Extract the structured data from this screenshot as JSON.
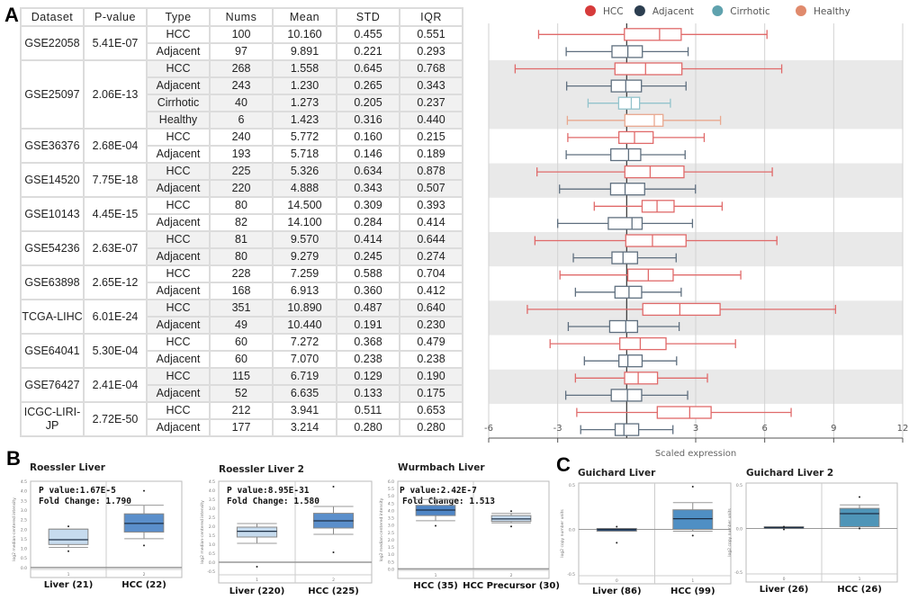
{
  "panel_letters": {
    "a": "A",
    "b": "B",
    "c": "C"
  },
  "table": {
    "headers": [
      "Dataset",
      "P-value",
      "Type",
      "Nums",
      "Mean",
      "STD",
      "IQR"
    ],
    "datasets": [
      {
        "name": "GSE22058",
        "pvalue": "5.41E-07",
        "rows": [
          [
            "HCC",
            "100",
            "10.160",
            "0.455",
            "0.551"
          ],
          [
            "Adjacent",
            "97",
            "9.891",
            "0.221",
            "0.293"
          ]
        ]
      },
      {
        "name": "GSE25097",
        "pvalue": "2.06E-13",
        "rows": [
          [
            "HCC",
            "268",
            "1.558",
            "0.645",
            "0.768"
          ],
          [
            "Adjacent",
            "243",
            "1.230",
            "0.265",
            "0.343"
          ],
          [
            "Cirrhotic",
            "40",
            "1.273",
            "0.205",
            "0.237"
          ],
          [
            "Healthy",
            "6",
            "1.423",
            "0.316",
            "0.440"
          ]
        ]
      },
      {
        "name": "GSE36376",
        "pvalue": "2.68E-04",
        "rows": [
          [
            "HCC",
            "240",
            "5.772",
            "0.160",
            "0.215"
          ],
          [
            "Adjacent",
            "193",
            "5.718",
            "0.146",
            "0.189"
          ]
        ]
      },
      {
        "name": "GSE14520",
        "pvalue": "7.75E-18",
        "rows": [
          [
            "HCC",
            "225",
            "5.326",
            "0.634",
            "0.878"
          ],
          [
            "Adjacent",
            "220",
            "4.888",
            "0.343",
            "0.507"
          ]
        ]
      },
      {
        "name": "GSE10143",
        "pvalue": "4.45E-15",
        "rows": [
          [
            "HCC",
            "80",
            "14.500",
            "0.309",
            "0.393"
          ],
          [
            "Adjacent",
            "82",
            "14.100",
            "0.284",
            "0.414"
          ]
        ]
      },
      {
        "name": "GSE54236",
        "pvalue": "2.63E-07",
        "rows": [
          [
            "HCC",
            "81",
            "9.570",
            "0.414",
            "0.644"
          ],
          [
            "Adjacent",
            "80",
            "9.279",
            "0.245",
            "0.274"
          ]
        ]
      },
      {
        "name": "GSE63898",
        "pvalue": "2.65E-12",
        "rows": [
          [
            "HCC",
            "228",
            "7.259",
            "0.588",
            "0.704"
          ],
          [
            "Adjacent",
            "168",
            "6.913",
            "0.360",
            "0.412"
          ]
        ]
      },
      {
        "name": "TCGA-LIHC",
        "pvalue": "6.01E-24",
        "rows": [
          [
            "HCC",
            "351",
            "10.890",
            "0.487",
            "0.640"
          ],
          [
            "Adjacent",
            "49",
            "10.440",
            "0.191",
            "0.230"
          ]
        ]
      },
      {
        "name": "GSE64041",
        "pvalue": "5.30E-04",
        "rows": [
          [
            "HCC",
            "60",
            "7.272",
            "0.368",
            "0.479"
          ],
          [
            "Adjacent",
            "60",
            "7.070",
            "0.238",
            "0.238"
          ]
        ]
      },
      {
        "name": "GSE76427",
        "pvalue": "2.41E-04",
        "rows": [
          [
            "HCC",
            "115",
            "6.719",
            "0.129",
            "0.190"
          ],
          [
            "Adjacent",
            "52",
            "6.635",
            "0.133",
            "0.175"
          ]
        ]
      },
      {
        "name": "ICGC-LIRI-JP",
        "pvalue": "2.72E-50",
        "rows": [
          [
            "HCC",
            "212",
            "3.941",
            "0.511",
            "0.653"
          ],
          [
            "Adjacent",
            "177",
            "3.214",
            "0.280",
            "0.280"
          ]
        ]
      }
    ]
  },
  "chart_data": [
    {
      "type": "boxplot-horizontal",
      "xlabel": "Scaled expression",
      "xlim": [
        -6,
        12
      ],
      "xticks": [
        -6,
        -3,
        3,
        6,
        9,
        12
      ],
      "grid": true,
      "legend_position": "top",
      "legend": [
        {
          "name": "HCC",
          "color": "#d63b3b"
        },
        {
          "name": "Adjacent",
          "color": "#2c3e50"
        },
        {
          "name": "Cirrhotic",
          "color": "#5fa2ae"
        },
        {
          "name": "Healthy",
          "color": "#e08a6c"
        }
      ],
      "stroke_colors": {
        "HCC": "#e06a6a",
        "Adjacent": "#5f6f7f",
        "Cirrhotic": "#93c3cc",
        "Healthy": "#e9a88f"
      },
      "boxes": [
        {
          "group": "HCC",
          "stats": [
            -3.83,
            -0.1,
            1.43,
            2.37,
            6.1
          ]
        },
        {
          "group": "Adjacent",
          "stats": [
            -2.63,
            -0.64,
            0.05,
            0.68,
            2.67
          ]
        },
        {
          "group": "HCC",
          "stats": [
            -4.85,
            -0.51,
            0.82,
            2.4,
            6.74
          ]
        },
        {
          "group": "Adjacent",
          "stats": [
            -2.61,
            -0.67,
            -0.04,
            0.64,
            2.58
          ]
        },
        {
          "group": "Cirrhotic",
          "stats": [
            -1.68,
            -0.35,
            0.2,
            0.56,
            1.9
          ]
        },
        {
          "group": "Healthy",
          "stats": [
            -2.58,
            -0.08,
            1.2,
            1.58,
            4.08
          ]
        },
        {
          "group": "HCC",
          "stats": [
            -2.56,
            -0.34,
            0.34,
            1.15,
            3.37
          ]
        },
        {
          "group": "Adjacent",
          "stats": [
            -2.63,
            -0.69,
            0.08,
            0.61,
            2.54
          ]
        },
        {
          "group": "HCC",
          "stats": [
            -3.9,
            -0.08,
            1.02,
            2.49,
            6.33
          ]
        },
        {
          "group": "Adjacent",
          "stats": [
            -2.92,
            -0.7,
            -0.07,
            0.78,
            2.99
          ]
        },
        {
          "group": "HCC",
          "stats": [
            -1.41,
            0.67,
            1.32,
            2.06,
            4.15
          ]
        },
        {
          "group": "Adjacent",
          "stats": [
            -3.0,
            -0.8,
            0.23,
            0.67,
            2.86
          ]
        },
        {
          "group": "HCC",
          "stats": [
            -3.99,
            -0.04,
            1.12,
            2.58,
            6.53
          ]
        },
        {
          "group": "Adjacent",
          "stats": [
            -2.32,
            -0.64,
            -0.16,
            0.47,
            2.15
          ]
        },
        {
          "group": "HCC",
          "stats": [
            -2.9,
            0.05,
            0.94,
            2.02,
            4.96
          ]
        },
        {
          "group": "Adjacent",
          "stats": [
            -2.23,
            -0.51,
            0.1,
            0.65,
            2.37
          ]
        },
        {
          "group": "HCC",
          "stats": [
            -4.32,
            0.7,
            2.31,
            4.06,
            9.08
          ]
        },
        {
          "group": "Adjacent",
          "stats": [
            -2.54,
            -0.74,
            -0.04,
            0.47,
            2.28
          ]
        },
        {
          "group": "HCC",
          "stats": [
            -3.33,
            -0.3,
            0.59,
            1.71,
            4.73
          ]
        },
        {
          "group": "Adjacent",
          "stats": [
            -1.84,
            -0.34,
            0.05,
            0.67,
            2.17
          ]
        },
        {
          "group": "HCC",
          "stats": [
            -2.23,
            -0.09,
            0.5,
            1.34,
            3.51
          ]
        },
        {
          "group": "Adjacent",
          "stats": [
            -2.65,
            -0.67,
            0.03,
            0.65,
            2.65
          ]
        },
        {
          "group": "HCC",
          "stats": [
            -2.17,
            1.33,
            2.74,
            3.67,
            7.15
          ]
        },
        {
          "group": "Adjacent",
          "stats": [
            -2.0,
            -0.5,
            -0.12,
            0.52,
            2.01
          ]
        }
      ]
    },
    {
      "type": "boxplot",
      "panel": "B",
      "title": "Roessler Liver",
      "pvalue": "P value:1.67E-5",
      "fold_change": "Fold Change:  1.790",
      "ylabel": "log2 median-centered intensity",
      "ylim": [
        -0.1,
        4.5
      ],
      "yticks": [
        "0.0",
        "0.5",
        "1.0",
        "1.5",
        "2.0",
        "2.5",
        "3.0",
        "3.5",
        "4.0",
        "4.5"
      ],
      "groups": [
        {
          "label": "Liver (21)",
          "index": "1",
          "color": "#c6dbee",
          "stats": [
            1.05,
            1.2,
            1.45,
            2.0,
            2.0
          ],
          "outliers": [
            0.85,
            2.15
          ]
        },
        {
          "label": "HCC (22)",
          "index": "2",
          "color": "#5b8fcb",
          "stats": [
            1.5,
            1.85,
            2.3,
            2.8,
            3.25
          ],
          "outliers": [
            1.15,
            4.0
          ]
        }
      ]
    },
    {
      "type": "boxplot",
      "panel": "B",
      "title": "Roessler Liver 2",
      "pvalue": "P value:8.95E-31",
      "fold_change": "Fold Change:  1.580",
      "ylabel": "log2 median-centered intensity",
      "ylim": [
        -0.7,
        4.5
      ],
      "yticks": [
        "-0.5",
        "0.0",
        "0.5",
        "1.0",
        "1.5",
        "2.0",
        "2.5",
        "3.0",
        "3.5",
        "4.0",
        "4.5"
      ],
      "groups": [
        {
          "label": "Liver (220)",
          "index": "1",
          "color": "#c6dbee",
          "stats": [
            1.05,
            1.4,
            1.72,
            1.95,
            2.15
          ],
          "outliers": [
            -0.25
          ]
        },
        {
          "label": "HCC (225)",
          "index": "2",
          "color": "#5b8fcb",
          "stats": [
            1.55,
            1.9,
            2.3,
            2.72,
            3.1
          ],
          "outliers": [
            0.55,
            4.2
          ]
        }
      ]
    },
    {
      "type": "boxplot",
      "panel": "B",
      "title": "Wurmbach Liver",
      "pvalue": "P value:2.42E-7",
      "fold_change": "Fold Change:  1.513",
      "ylabel": "log2 median-centered intensity",
      "ylim": [
        -0.1,
        6.0
      ],
      "yticks": [
        "0.0",
        "0.5",
        "1.0",
        "1.5",
        "2.0",
        "2.5",
        "3.0",
        "3.5",
        "4.0",
        "4.5",
        "5.0",
        "5.5",
        "6.0"
      ],
      "groups": [
        {
          "label": "HCC (35)",
          "index": "1",
          "color": "#4f86c6",
          "stats": [
            3.3,
            3.65,
            4.03,
            4.35,
            4.75
          ],
          "outliers": [
            2.95
          ]
        },
        {
          "label": "HCC Precursor (30)",
          "index": "2",
          "color": "#c6dbee",
          "stats": [
            3.15,
            3.25,
            3.42,
            3.65,
            3.8
          ],
          "outliers": [
            2.9,
            3.95
          ]
        }
      ]
    },
    {
      "type": "boxplot",
      "panel": "C",
      "title": "Guichard Liver",
      "ylabel": "log2 copy number units",
      "ylim": [
        -0.52,
        0.52
      ],
      "yticks": [
        "-0.5",
        "0.0",
        "0.5"
      ],
      "groups": [
        {
          "label": "Liver (86)",
          "index": "0",
          "color": "#2f4f7a",
          "stats": [
            -0.02,
            -0.02,
            0.0,
            0.01,
            0.01
          ],
          "outliers": [
            0.03,
            -0.15
          ]
        },
        {
          "label": "HCC (99)",
          "index": "1",
          "color": "#4f8fc4",
          "stats": [
            -0.02,
            0.0,
            0.12,
            0.22,
            0.3
          ],
          "outliers": [
            0.48,
            -0.07
          ]
        }
      ]
    },
    {
      "type": "boxplot",
      "panel": "C",
      "title": "Guichard Liver 2",
      "ylabel": "log2 copy number units",
      "ylim": [
        -0.52,
        0.52
      ],
      "yticks": [
        "-0.5",
        "0.0",
        "0.5"
      ],
      "groups": [
        {
          "label": "Liver (26)",
          "index": "0",
          "color": "#2f6f8f",
          "stats": [
            0.0,
            0.0,
            0.01,
            0.02,
            0.02
          ],
          "outliers": [
            0.02,
            -0.01
          ]
        },
        {
          "label": "HCC (26)",
          "index": "1",
          "color": "#4f95b8",
          "stats": [
            0.0,
            0.02,
            0.17,
            0.23,
            0.27
          ],
          "outliers": [
            0.36,
            0.0
          ]
        }
      ]
    }
  ]
}
